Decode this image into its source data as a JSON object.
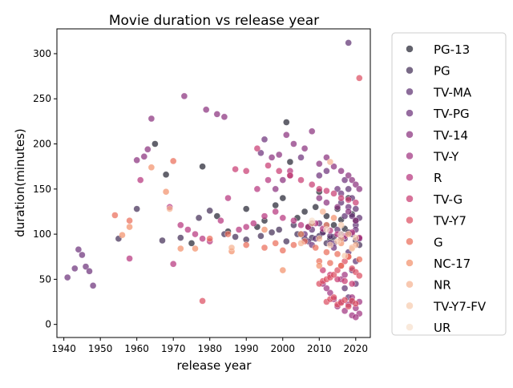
{
  "chart_data": {
    "type": "scatter",
    "title": "Movie duration vs release year",
    "xlabel": "release year",
    "ylabel": "duration(minutes)",
    "xlim": [
      1938.1,
      2024.0
    ],
    "ylim": [
      -14.5,
      327.5
    ],
    "xticks": [
      1940,
      1950,
      1960,
      1970,
      1980,
      1990,
      2000,
      2010,
      2020
    ],
    "yticks": [
      0,
      50,
      100,
      150,
      200,
      250,
      300
    ],
    "grid": false,
    "legend_placement": "outside right",
    "marker_alpha": 0.7,
    "series": [
      {
        "name": "PG-13",
        "color": "#20202e",
        "points": [
          [
            1965,
            200
          ],
          [
            1968,
            166
          ],
          [
            1978,
            175
          ],
          [
            1985,
            103
          ],
          [
            1990,
            128
          ],
          [
            1993,
            108
          ],
          [
            1995,
            115
          ],
          [
            1998,
            132
          ],
          [
            2000,
            140
          ],
          [
            2001,
            224
          ],
          [
            2002,
            180
          ],
          [
            2004,
            118
          ],
          [
            2005,
            100
          ],
          [
            2006,
            125
          ],
          [
            2007,
            108
          ],
          [
            2008,
            112
          ],
          [
            2009,
            130
          ],
          [
            2010,
            147
          ],
          [
            2011,
            102
          ],
          [
            2012,
            120
          ],
          [
            2013,
            95
          ],
          [
            2014,
            110
          ],
          [
            2015,
            128
          ],
          [
            2016,
            116
          ],
          [
            2017,
            106
          ],
          [
            2018,
            140
          ],
          [
            2019,
            122
          ],
          [
            2020,
            115
          ],
          [
            1975,
            90
          ],
          [
            1982,
            120
          ]
        ]
      },
      {
        "name": "PG",
        "color": "#3e2a53",
        "points": [
          [
            1955,
            95
          ],
          [
            1960,
            128
          ],
          [
            1967,
            93
          ],
          [
            1972,
            96
          ],
          [
            1977,
            118
          ],
          [
            1980,
            126
          ],
          [
            1984,
            100
          ],
          [
            1987,
            97
          ],
          [
            1990,
            94
          ],
          [
            1994,
            98
          ],
          [
            1997,
            102
          ],
          [
            2001,
            92
          ],
          [
            2004,
            100
          ],
          [
            2006,
            95
          ],
          [
            2008,
            96
          ],
          [
            2010,
            98
          ],
          [
            2012,
            90
          ],
          [
            2014,
            97
          ],
          [
            2016,
            95
          ],
          [
            2018,
            102
          ],
          [
            2020,
            93
          ],
          [
            2021,
            88
          ],
          [
            2003,
            110
          ],
          [
            1999,
            105
          ]
        ]
      },
      {
        "name": "TV-MA",
        "color": "#5b2d6f",
        "points": [
          [
            2016,
            100
          ],
          [
            2017,
            95
          ],
          [
            2018,
            312
          ],
          [
            2019,
            100
          ],
          [
            2020,
            110
          ],
          [
            2021,
            95
          ],
          [
            2015,
            105
          ],
          [
            2014,
            90
          ],
          [
            2013,
            98
          ],
          [
            2012,
            110
          ],
          [
            2011,
            102
          ],
          [
            2018,
            80
          ],
          [
            2019,
            60
          ],
          [
            2020,
            70
          ],
          [
            2017,
            120
          ],
          [
            2016,
            135
          ],
          [
            2018,
            150
          ],
          [
            2019,
            140
          ],
          [
            2020,
            128
          ],
          [
            2021,
            118
          ],
          [
            2010,
            112
          ],
          [
            2009,
            95
          ],
          [
            2008,
            105
          ],
          [
            2007,
            92
          ],
          [
            2017,
            40
          ],
          [
            2018,
            30
          ],
          [
            2019,
            25
          ],
          [
            2020,
            45
          ]
        ]
      },
      {
        "name": "TV-PG",
        "color": "#6a2d78",
        "points": [
          [
            1944,
            83
          ],
          [
            1945,
            77
          ],
          [
            1943,
            62
          ],
          [
            1946,
            64
          ],
          [
            1947,
            59
          ],
          [
            1948,
            43
          ],
          [
            1941,
            52
          ],
          [
            1994,
            190
          ],
          [
            1995,
            205
          ],
          [
            2005,
            185
          ],
          [
            2010,
            165
          ],
          [
            2012,
            170
          ],
          [
            2015,
            150
          ],
          [
            2016,
            145
          ],
          [
            2017,
            160
          ],
          [
            2018,
            130
          ],
          [
            2019,
            120
          ],
          [
            2020,
            105
          ],
          [
            2021,
            95
          ],
          [
            2014,
            85
          ],
          [
            2013,
            90
          ],
          [
            2008,
            88
          ],
          [
            2006,
            100
          ]
        ]
      },
      {
        "name": "TV-14",
        "color": "#882c7a",
        "points": [
          [
            1960,
            182
          ],
          [
            1962,
            186
          ],
          [
            1963,
            194
          ],
          [
            1964,
            228
          ],
          [
            1973,
            253
          ],
          [
            1979,
            238
          ],
          [
            1982,
            233
          ],
          [
            1984,
            230
          ],
          [
            1997,
            185
          ],
          [
            1999,
            188
          ],
          [
            2001,
            210
          ],
          [
            2003,
            200
          ],
          [
            2006,
            195
          ],
          [
            2008,
            214
          ],
          [
            2010,
            178
          ],
          [
            2012,
            185
          ],
          [
            2014,
            175
          ],
          [
            2016,
            170
          ],
          [
            2018,
            165
          ],
          [
            2019,
            160
          ],
          [
            2020,
            155
          ],
          [
            2021,
            150
          ],
          [
            2010,
            140
          ],
          [
            2012,
            135
          ],
          [
            2015,
            130
          ],
          [
            2018,
            125
          ],
          [
            2020,
            115
          ],
          [
            1998,
            150
          ],
          [
            2000,
            160
          ],
          [
            2002,
            165
          ]
        ]
      },
      {
        "name": "TV-Y",
        "color": "#9e2f7e",
        "points": [
          [
            2015,
            20
          ],
          [
            2016,
            25
          ],
          [
            2017,
            15
          ],
          [
            2018,
            22
          ],
          [
            2019,
            30
          ],
          [
            2020,
            18
          ],
          [
            2021,
            12
          ],
          [
            2014,
            28
          ],
          [
            2013,
            35
          ],
          [
            2012,
            40
          ],
          [
            2011,
            45
          ],
          [
            2019,
            10
          ],
          [
            2020,
            8
          ],
          [
            2016,
            50
          ],
          [
            2017,
            55
          ],
          [
            2021,
            25
          ]
        ]
      },
      {
        "name": "R",
        "color": "#b5317a",
        "points": [
          [
            1958,
            73
          ],
          [
            1961,
            160
          ],
          [
            1969,
            130
          ],
          [
            1970,
            67
          ],
          [
            1972,
            110
          ],
          [
            1974,
            105
          ],
          [
            1976,
            100
          ],
          [
            1978,
            95
          ],
          [
            1980,
            92
          ],
          [
            1983,
            115
          ],
          [
            1985,
            140
          ],
          [
            1988,
            105
          ],
          [
            1990,
            108
          ],
          [
            1992,
            112
          ],
          [
            1995,
            120
          ],
          [
            1998,
            125
          ],
          [
            2000,
            118
          ],
          [
            2003,
            115
          ],
          [
            2005,
            110
          ],
          [
            2007,
            108
          ],
          [
            2009,
            112
          ],
          [
            2011,
            106
          ],
          [
            2013,
            104
          ],
          [
            2015,
            100
          ],
          [
            2017,
            98
          ],
          [
            2019,
            102
          ],
          [
            2021,
            96
          ],
          [
            1993,
            150
          ],
          [
            1996,
            160
          ],
          [
            2002,
            170
          ]
        ]
      },
      {
        "name": "TV-G",
        "color": "#c8386f",
        "points": [
          [
            1987,
            172
          ],
          [
            1990,
            170
          ],
          [
            1993,
            195
          ],
          [
            1996,
            176
          ],
          [
            1999,
            170
          ],
          [
            2002,
            165
          ],
          [
            2005,
            160
          ],
          [
            2008,
            155
          ],
          [
            2010,
            150
          ],
          [
            2012,
            148
          ],
          [
            2014,
            145
          ],
          [
            2016,
            140
          ],
          [
            2018,
            138
          ],
          [
            2020,
            135
          ],
          [
            2011,
            60
          ],
          [
            2013,
            55
          ],
          [
            2015,
            50
          ],
          [
            2017,
            48
          ],
          [
            2019,
            45
          ]
        ]
      },
      {
        "name": "TV-Y7",
        "color": "#dc4a5e",
        "points": [
          [
            1978,
            26
          ],
          [
            2012,
            25
          ],
          [
            2013,
            28
          ],
          [
            2014,
            30
          ],
          [
            2015,
            22
          ],
          [
            2016,
            24
          ],
          [
            2017,
            27
          ],
          [
            2018,
            20
          ],
          [
            2019,
            26
          ],
          [
            2020,
            23
          ],
          [
            2021,
            273
          ],
          [
            2010,
            45
          ],
          [
            2011,
            48
          ],
          [
            2012,
            50
          ],
          [
            2013,
            52
          ],
          [
            2014,
            55
          ],
          [
            2015,
            60
          ],
          [
            2016,
            65
          ],
          [
            2017,
            70
          ],
          [
            2018,
            75
          ],
          [
            2019,
            62
          ],
          [
            2020,
            58
          ],
          [
            2021,
            54
          ]
        ]
      },
      {
        "name": "G",
        "color": "#ea6a56",
        "points": [
          [
            1954,
            121
          ],
          [
            1958,
            115
          ],
          [
            1970,
            181
          ],
          [
            1980,
            95
          ],
          [
            1985,
            100
          ],
          [
            1990,
            88
          ],
          [
            1995,
            85
          ],
          [
            1998,
            90
          ],
          [
            2000,
            82
          ],
          [
            2003,
            88
          ],
          [
            2006,
            92
          ],
          [
            2009,
            85
          ],
          [
            2012,
            80
          ],
          [
            2015,
            78
          ],
          [
            2018,
            75
          ],
          [
            2021,
            72
          ],
          [
            2010,
            70
          ],
          [
            2013,
            68
          ],
          [
            2016,
            65
          ]
        ]
      },
      {
        "name": "NC-17",
        "color": "#f28f68",
        "points": [
          [
            1956,
            99
          ],
          [
            1958,
            108
          ],
          [
            1964,
            174
          ],
          [
            1968,
            147
          ],
          [
            1972,
            84
          ],
          [
            1976,
            84
          ],
          [
            1986,
            81
          ],
          [
            1995,
            105
          ],
          [
            2000,
            60
          ],
          [
            2005,
            100
          ],
          [
            2010,
            65
          ],
          [
            2012,
            110
          ],
          [
            2014,
            118
          ],
          [
            2016,
            90
          ],
          [
            2019,
            85
          ]
        ]
      },
      {
        "name": "NR",
        "color": "#f5b08f",
        "points": [
          [
            1969,
            128
          ],
          [
            1986,
            85
          ],
          [
            2008,
            112
          ],
          [
            2011,
            125
          ],
          [
            2013,
            180
          ],
          [
            2016,
            95
          ],
          [
            2018,
            100
          ],
          [
            2020,
            88
          ],
          [
            2010,
            95
          ],
          [
            2005,
            90
          ]
        ]
      },
      {
        "name": "TV-Y7-FV",
        "color": "#f6cbad",
        "points": [
          [
            2013,
            88
          ],
          [
            2015,
            92
          ],
          [
            2017,
            76
          ],
          [
            2019,
            84
          ],
          [
            2020,
            96
          ],
          [
            2016,
            110
          ]
        ]
      },
      {
        "name": "UR",
        "color": "#f6dfcc",
        "points": [
          [
            2008,
            115
          ],
          [
            2012,
            105
          ],
          [
            2016,
            100
          ]
        ]
      }
    ]
  }
}
